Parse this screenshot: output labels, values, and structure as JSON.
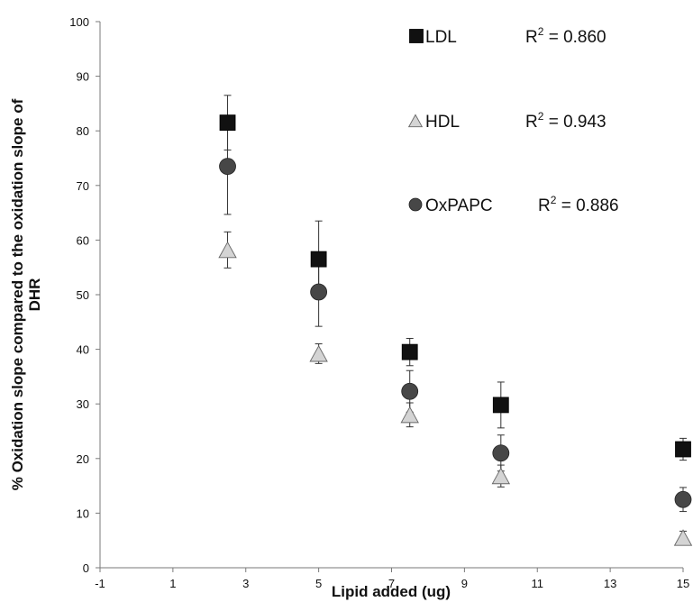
{
  "chart_data": {
    "type": "scatter",
    "xlabel": "Lipid added (ug)",
    "ylabel": [
      "% Oxidation slope compared to the oxidation slope of",
      "DHR"
    ],
    "xlim": [
      -1,
      15
    ],
    "ylim": [
      0,
      100
    ],
    "xticks": [
      "-1",
      "1",
      "3",
      "5",
      "7",
      "9",
      "11",
      "13",
      "15"
    ],
    "yticks": [
      "0",
      "10",
      "20",
      "30",
      "40",
      "50",
      "60",
      "70",
      "80",
      "90",
      "100"
    ],
    "grid": false,
    "legend_position": "top-right",
    "series": [
      {
        "name": "LDL",
        "marker": "square",
        "color": "#111111",
        "r2_label": "R",
        "r2_sup": "2",
        "r2_value": " = 0.860",
        "points": [
          {
            "x": 2.5,
            "y": 81.5,
            "err": 5
          },
          {
            "x": 5,
            "y": 56.5,
            "err": 7
          },
          {
            "x": 7.5,
            "y": 39.5,
            "err": 2.5
          },
          {
            "x": 10,
            "y": 29.8,
            "err": 4.2
          },
          {
            "x": 15,
            "y": 21.7,
            "err": 2
          }
        ]
      },
      {
        "name": "HDL",
        "marker": "triangle",
        "color": "#d4d4d4",
        "r2_label": "R",
        "r2_sup": "2",
        "r2_value": " = 0.943",
        "points": [
          {
            "x": 2.5,
            "y": 58.2,
            "err": 3.3
          },
          {
            "x": 5,
            "y": 39.2,
            "err": 1.8
          },
          {
            "x": 7.5,
            "y": 28,
            "err": 2.2
          },
          {
            "x": 10,
            "y": 16.8,
            "err": 2
          },
          {
            "x": 15,
            "y": 5.5,
            "err": 1.2
          }
        ]
      },
      {
        "name": "OxPAPC",
        "marker": "circle",
        "color": "#474747",
        "r2_label": "R",
        "r2_sup": "2",
        "r2_value": " = 0.886",
        "points": [
          {
            "x": 2.5,
            "y": 73.5,
            "err": 8.8
          },
          {
            "x": 5,
            "y": 50.5,
            "err": 6.3
          },
          {
            "x": 7.5,
            "y": 32.3,
            "err": 3.8
          },
          {
            "x": 10,
            "y": 21,
            "err": 3.3
          },
          {
            "x": 15,
            "y": 12.5,
            "err": 2.2
          }
        ]
      }
    ]
  }
}
